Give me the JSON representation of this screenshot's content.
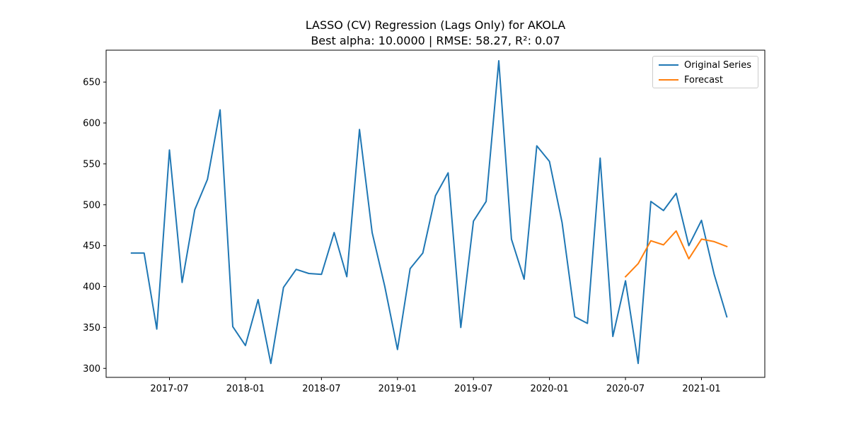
{
  "chart_data": {
    "type": "line",
    "title": "LASSO (CV) Regression (Lags Only) for AKOLA",
    "subtitle": "Best alpha: 10.0000 | RMSE: 58.27, R²: 0.07",
    "xlabel": "",
    "ylabel": "",
    "x_tick_labels": [
      "2017-07",
      "2018-01",
      "2018-07",
      "2019-01",
      "2019-07",
      "2020-01",
      "2020-07",
      "2021-01"
    ],
    "y_ticks": [
      300,
      350,
      400,
      450,
      500,
      550,
      600,
      650
    ],
    "xlim": [
      "2017-02",
      "2021-06"
    ],
    "ylim": [
      289,
      689
    ],
    "grid": false,
    "legend_position": "top-right",
    "series": [
      {
        "name": "Original Series",
        "color": "#1f77b4",
        "x": [
          "2017-04",
          "2017-05",
          "2017-06",
          "2017-07",
          "2017-08",
          "2017-09",
          "2017-10",
          "2017-11",
          "2017-12",
          "2018-01",
          "2018-02",
          "2018-03",
          "2018-04",
          "2018-05",
          "2018-06",
          "2018-07",
          "2018-08",
          "2018-09",
          "2018-10",
          "2018-11",
          "2018-12",
          "2019-01",
          "2019-02",
          "2019-03",
          "2019-04",
          "2019-05",
          "2019-06",
          "2019-07",
          "2019-08",
          "2019-09",
          "2019-10",
          "2019-11",
          "2019-12",
          "2020-01",
          "2020-02",
          "2020-03",
          "2020-04",
          "2020-05",
          "2020-06",
          "2020-07",
          "2020-08",
          "2020-09",
          "2020-10",
          "2020-11",
          "2020-12",
          "2021-01",
          "2021-02",
          "2021-03"
        ],
        "y": [
          441,
          441,
          348,
          567,
          405,
          494,
          531,
          616,
          351,
          328,
          384,
          306,
          399,
          421,
          416,
          415,
          466,
          412,
          592,
          466,
          400,
          323,
          422,
          441,
          511,
          539,
          350,
          480,
          504,
          676,
          458,
          409,
          572,
          553,
          478,
          363,
          355,
          557,
          339,
          407,
          306,
          504,
          493,
          514,
          450,
          481,
          415,
          363
        ]
      },
      {
        "name": "Forecast",
        "color": "#ff7f0e",
        "x": [
          "2020-07",
          "2020-08",
          "2020-09",
          "2020-10",
          "2020-11",
          "2020-12",
          "2021-01",
          "2021-02",
          "2021-03"
        ],
        "y": [
          412,
          428,
          456,
          451,
          468,
          434,
          458,
          455,
          449
        ]
      }
    ]
  }
}
